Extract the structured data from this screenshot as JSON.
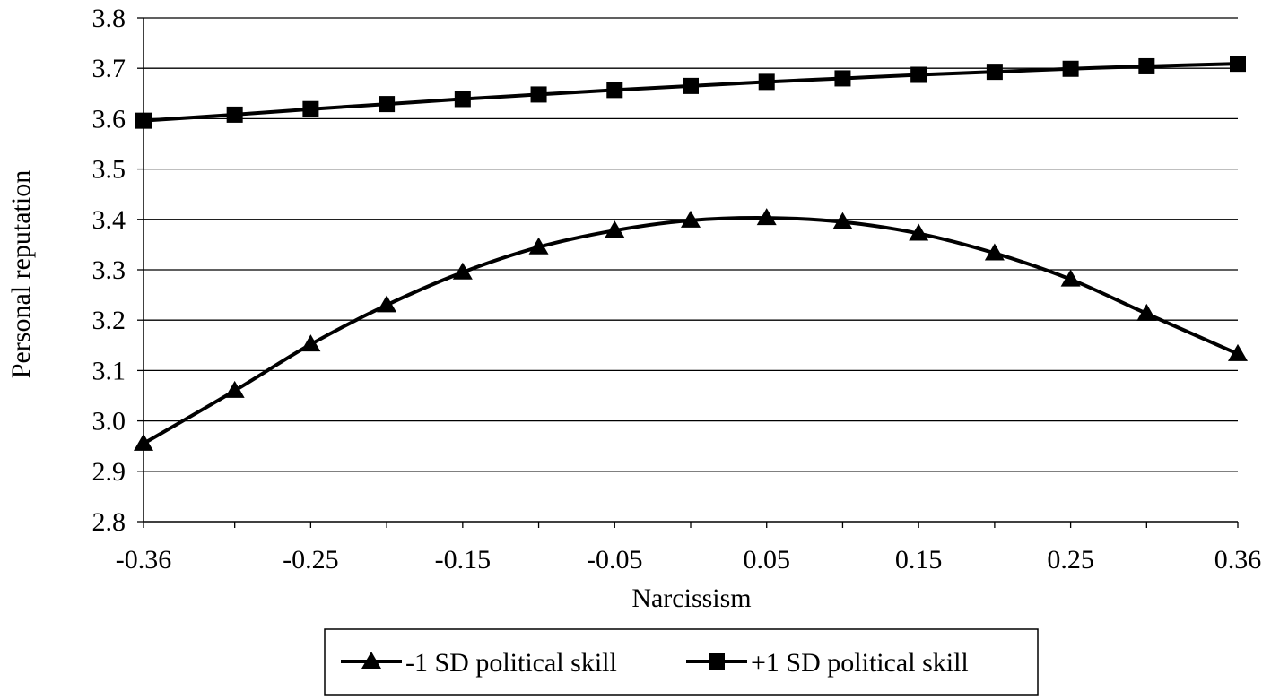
{
  "chart_data": {
    "type": "line",
    "xlabel": "Narcissism",
    "ylabel": "Personal reputation",
    "x_tick_labels": [
      "-0.36",
      "-0.25",
      "-0.15",
      "-0.05",
      "0.05",
      "0.15",
      "0.25",
      "0.36"
    ],
    "y_tick_labels": [
      "2.8",
      "2.9",
      "3.0",
      "3.1",
      "3.2",
      "3.3",
      "3.4",
      "3.5",
      "3.6",
      "3.7",
      "3.8"
    ],
    "ylim": [
      2.8,
      3.8
    ],
    "grid": "horizontal",
    "legend_position": "bottom",
    "x": [
      -0.36,
      -0.3,
      -0.25,
      -0.2,
      -0.15,
      -0.1,
      -0.05,
      0.0,
      0.05,
      0.1,
      0.15,
      0.2,
      0.25,
      0.3,
      0.36
    ],
    "series": [
      {
        "name": "-1 SD political skill",
        "marker": "triangle",
        "color": "#000000",
        "values": [
          2.955,
          3.06,
          3.152,
          3.23,
          3.295,
          3.345,
          3.378,
          3.398,
          3.403,
          3.395,
          3.372,
          3.333,
          3.281,
          3.213,
          3.133
        ]
      },
      {
        "name": "+1 SD political skill",
        "marker": "square",
        "color": "#000000",
        "values": [
          3.596,
          3.608,
          3.619,
          3.629,
          3.639,
          3.648,
          3.657,
          3.665,
          3.673,
          3.68,
          3.687,
          3.693,
          3.699,
          3.704,
          3.709
        ]
      }
    ]
  }
}
